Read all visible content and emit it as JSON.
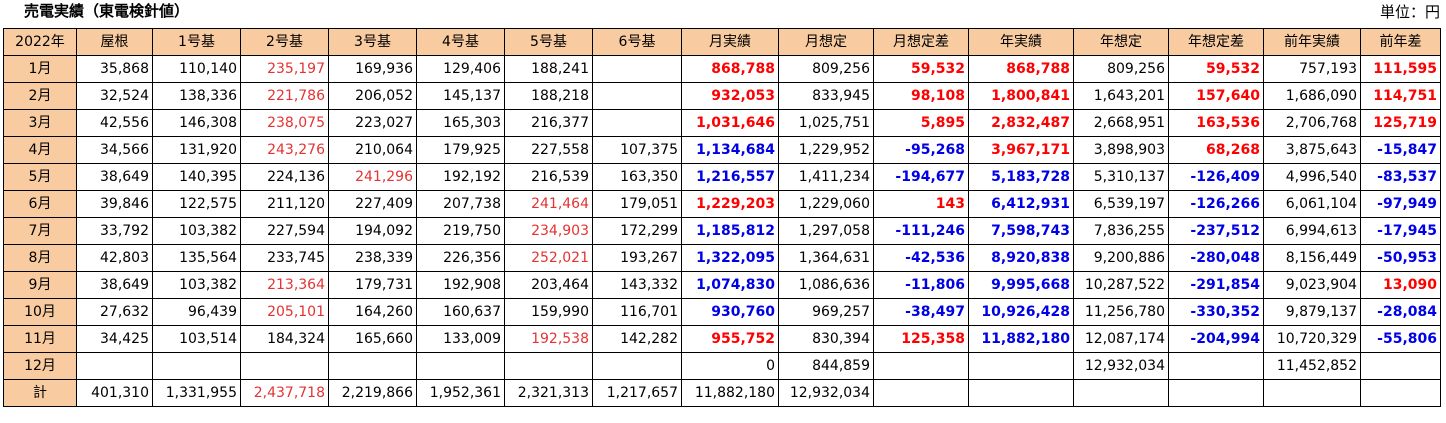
{
  "title": "売電実績（東電検針値）",
  "unit": "単位：円",
  "colors": {
    "header_bg": "#f8cba0",
    "red": "#e63232",
    "bold_red": "#ff0000",
    "bold_blue": "#0000e6"
  },
  "headers": [
    "2022年",
    "屋根",
    "1号基",
    "2号基",
    "3号基",
    "4号基",
    "5号基",
    "6号基",
    "月実績",
    "月想定",
    "月想定差",
    "年実績",
    "年想定",
    "年想定差",
    "前年実績",
    "前年差"
  ],
  "rows": [
    {
      "label": "1月",
      "cells": [
        {
          "v": "35,868"
        },
        {
          "v": "110,140"
        },
        {
          "v": "235,197",
          "s": "red"
        },
        {
          "v": "169,936"
        },
        {
          "v": "129,406"
        },
        {
          "v": "188,241"
        },
        {
          "v": ""
        },
        {
          "v": "868,788",
          "s": "bred"
        },
        {
          "v": "809,256"
        },
        {
          "v": "59,532",
          "s": "bred"
        },
        {
          "v": "868,788",
          "s": "bred"
        },
        {
          "v": "809,256"
        },
        {
          "v": "59,532",
          "s": "bred"
        },
        {
          "v": "757,193"
        },
        {
          "v": "111,595",
          "s": "bred"
        }
      ]
    },
    {
      "label": "2月",
      "cells": [
        {
          "v": "32,524"
        },
        {
          "v": "138,336"
        },
        {
          "v": "221,786",
          "s": "red"
        },
        {
          "v": "206,052"
        },
        {
          "v": "145,137"
        },
        {
          "v": "188,218"
        },
        {
          "v": ""
        },
        {
          "v": "932,053",
          "s": "bred"
        },
        {
          "v": "833,945"
        },
        {
          "v": "98,108",
          "s": "bred"
        },
        {
          "v": "1,800,841",
          "s": "bred"
        },
        {
          "v": "1,643,201"
        },
        {
          "v": "157,640",
          "s": "bred"
        },
        {
          "v": "1,686,090"
        },
        {
          "v": "114,751",
          "s": "bred"
        }
      ]
    },
    {
      "label": "3月",
      "cells": [
        {
          "v": "42,556"
        },
        {
          "v": "146,308"
        },
        {
          "v": "238,075",
          "s": "red"
        },
        {
          "v": "223,027"
        },
        {
          "v": "165,303"
        },
        {
          "v": "216,377"
        },
        {
          "v": ""
        },
        {
          "v": "1,031,646",
          "s": "bred"
        },
        {
          "v": "1,025,751"
        },
        {
          "v": "5,895",
          "s": "bred"
        },
        {
          "v": "2,832,487",
          "s": "bred"
        },
        {
          "v": "2,668,951"
        },
        {
          "v": "163,536",
          "s": "bred"
        },
        {
          "v": "2,706,768"
        },
        {
          "v": "125,719",
          "s": "bred"
        }
      ]
    },
    {
      "label": "4月",
      "cells": [
        {
          "v": "34,566"
        },
        {
          "v": "131,920"
        },
        {
          "v": "243,276",
          "s": "red"
        },
        {
          "v": "210,064"
        },
        {
          "v": "179,925"
        },
        {
          "v": "227,558"
        },
        {
          "v": "107,375"
        },
        {
          "v": "1,134,684",
          "s": "bblue"
        },
        {
          "v": "1,229,952"
        },
        {
          "v": "-95,268",
          "s": "bblue"
        },
        {
          "v": "3,967,171",
          "s": "bred"
        },
        {
          "v": "3,898,903"
        },
        {
          "v": "68,268",
          "s": "bred"
        },
        {
          "v": "3,875,643"
        },
        {
          "v": "-15,847",
          "s": "bblue"
        }
      ]
    },
    {
      "label": "5月",
      "cells": [
        {
          "v": "38,649"
        },
        {
          "v": "140,395"
        },
        {
          "v": "224,136"
        },
        {
          "v": "241,296",
          "s": "red"
        },
        {
          "v": "192,192"
        },
        {
          "v": "216,539"
        },
        {
          "v": "163,350"
        },
        {
          "v": "1,216,557",
          "s": "bblue"
        },
        {
          "v": "1,411,234"
        },
        {
          "v": "-194,677",
          "s": "bblue"
        },
        {
          "v": "5,183,728",
          "s": "bblue"
        },
        {
          "v": "5,310,137"
        },
        {
          "v": "-126,409",
          "s": "bblue"
        },
        {
          "v": "4,996,540"
        },
        {
          "v": "-83,537",
          "s": "bblue"
        }
      ]
    },
    {
      "label": "6月",
      "cells": [
        {
          "v": "39,846"
        },
        {
          "v": "122,575"
        },
        {
          "v": "211,120"
        },
        {
          "v": "227,409"
        },
        {
          "v": "207,738"
        },
        {
          "v": "241,464",
          "s": "red"
        },
        {
          "v": "179,051"
        },
        {
          "v": "1,229,203",
          "s": "bred"
        },
        {
          "v": "1,229,060"
        },
        {
          "v": "143",
          "s": "bred"
        },
        {
          "v": "6,412,931",
          "s": "bblue"
        },
        {
          "v": "6,539,197"
        },
        {
          "v": "-126,266",
          "s": "bblue"
        },
        {
          "v": "6,061,104"
        },
        {
          "v": "-97,949",
          "s": "bblue"
        }
      ]
    },
    {
      "label": "7月",
      "cells": [
        {
          "v": "33,792"
        },
        {
          "v": "103,382"
        },
        {
          "v": "227,594"
        },
        {
          "v": "194,092"
        },
        {
          "v": "219,750"
        },
        {
          "v": "234,903",
          "s": "red"
        },
        {
          "v": "172,299"
        },
        {
          "v": "1,185,812",
          "s": "bblue"
        },
        {
          "v": "1,297,058"
        },
        {
          "v": "-111,246",
          "s": "bblue"
        },
        {
          "v": "7,598,743",
          "s": "bblue"
        },
        {
          "v": "7,836,255"
        },
        {
          "v": "-237,512",
          "s": "bblue"
        },
        {
          "v": "6,994,613"
        },
        {
          "v": "-17,945",
          "s": "bblue"
        }
      ]
    },
    {
      "label": "8月",
      "cells": [
        {
          "v": "42,803"
        },
        {
          "v": "135,564"
        },
        {
          "v": "233,745"
        },
        {
          "v": "238,339"
        },
        {
          "v": "226,356"
        },
        {
          "v": "252,021",
          "s": "red"
        },
        {
          "v": "193,267"
        },
        {
          "v": "1,322,095",
          "s": "bblue"
        },
        {
          "v": "1,364,631"
        },
        {
          "v": "-42,536",
          "s": "bblue"
        },
        {
          "v": "8,920,838",
          "s": "bblue"
        },
        {
          "v": "9,200,886"
        },
        {
          "v": "-280,048",
          "s": "bblue"
        },
        {
          "v": "8,156,449"
        },
        {
          "v": "-50,953",
          "s": "bblue"
        }
      ]
    },
    {
      "label": "9月",
      "cells": [
        {
          "v": "38,649"
        },
        {
          "v": "103,382"
        },
        {
          "v": "213,364",
          "s": "red"
        },
        {
          "v": "179,731"
        },
        {
          "v": "192,908"
        },
        {
          "v": "203,464"
        },
        {
          "v": "143,332"
        },
        {
          "v": "1,074,830",
          "s": "bblue"
        },
        {
          "v": "1,086,636"
        },
        {
          "v": "-11,806",
          "s": "bblue"
        },
        {
          "v": "9,995,668",
          "s": "bblue"
        },
        {
          "v": "10,287,522"
        },
        {
          "v": "-291,854",
          "s": "bblue"
        },
        {
          "v": "9,023,904"
        },
        {
          "v": "13,090",
          "s": "bred"
        }
      ]
    },
    {
      "label": "10月",
      "cells": [
        {
          "v": "27,632"
        },
        {
          "v": "96,439"
        },
        {
          "v": "205,101",
          "s": "red"
        },
        {
          "v": "164,260"
        },
        {
          "v": "160,637"
        },
        {
          "v": "159,990"
        },
        {
          "v": "116,701"
        },
        {
          "v": "930,760",
          "s": "bblue"
        },
        {
          "v": "969,257"
        },
        {
          "v": "-38,497",
          "s": "bblue"
        },
        {
          "v": "10,926,428",
          "s": "bblue"
        },
        {
          "v": "11,256,780"
        },
        {
          "v": "-330,352",
          "s": "bblue"
        },
        {
          "v": "9,879,137"
        },
        {
          "v": "-28,084",
          "s": "bblue"
        }
      ]
    },
    {
      "label": "11月",
      "cells": [
        {
          "v": "34,425"
        },
        {
          "v": "103,514"
        },
        {
          "v": "184,324"
        },
        {
          "v": "165,660"
        },
        {
          "v": "133,009"
        },
        {
          "v": "192,538",
          "s": "red"
        },
        {
          "v": "142,282"
        },
        {
          "v": "955,752",
          "s": "bred"
        },
        {
          "v": "830,394"
        },
        {
          "v": "125,358",
          "s": "bred"
        },
        {
          "v": "11,882,180",
          "s": "bblue"
        },
        {
          "v": "12,087,174"
        },
        {
          "v": "-204,994",
          "s": "bblue"
        },
        {
          "v": "10,720,329"
        },
        {
          "v": "-55,806",
          "s": "bblue"
        }
      ]
    },
    {
      "label": "12月",
      "cells": [
        {
          "v": ""
        },
        {
          "v": ""
        },
        {
          "v": ""
        },
        {
          "v": ""
        },
        {
          "v": ""
        },
        {
          "v": ""
        },
        {
          "v": ""
        },
        {
          "v": "0"
        },
        {
          "v": "844,859"
        },
        {
          "v": ""
        },
        {
          "v": ""
        },
        {
          "v": "12,932,034"
        },
        {
          "v": ""
        },
        {
          "v": "11,452,852"
        },
        {
          "v": ""
        }
      ]
    },
    {
      "label": "計",
      "cells": [
        {
          "v": "401,310"
        },
        {
          "v": "1,331,955"
        },
        {
          "v": "2,437,718",
          "s": "red"
        },
        {
          "v": "2,219,866"
        },
        {
          "v": "1,952,361"
        },
        {
          "v": "2,321,313"
        },
        {
          "v": "1,217,657"
        },
        {
          "v": "11,882,180"
        },
        {
          "v": "12,932,034"
        },
        {
          "v": ""
        },
        {
          "v": ""
        },
        {
          "v": ""
        },
        {
          "v": ""
        },
        {
          "v": ""
        },
        {
          "v": ""
        }
      ]
    }
  ]
}
